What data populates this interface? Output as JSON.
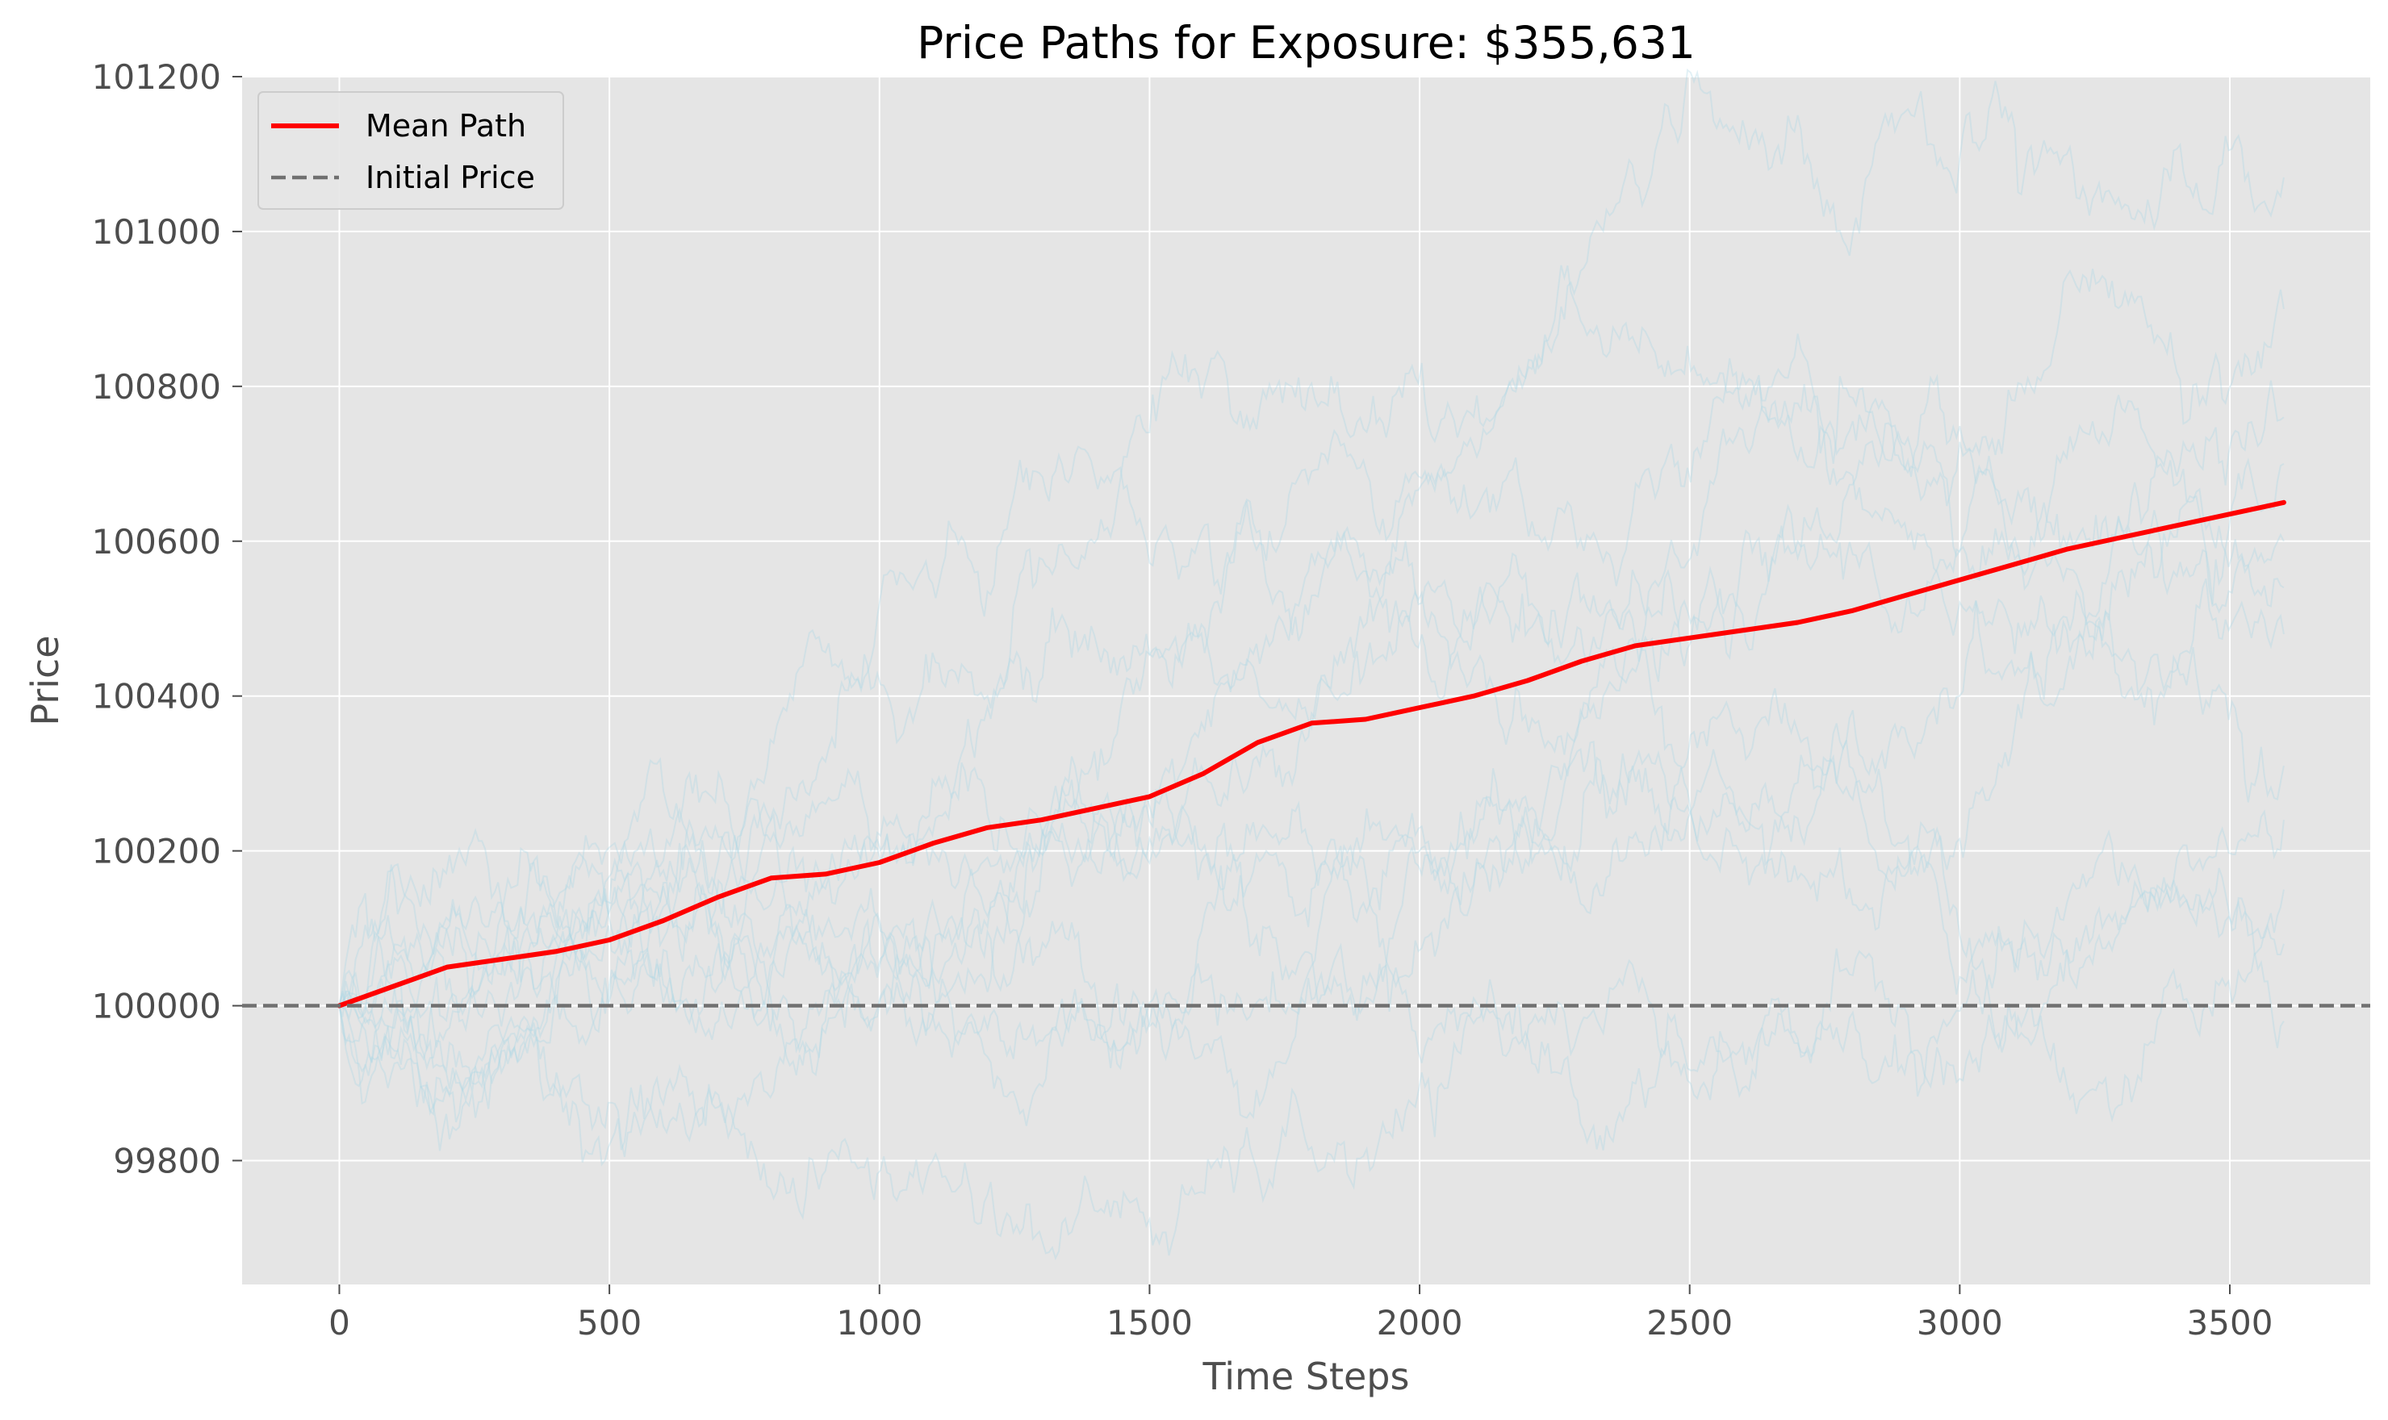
{
  "chart_data": {
    "type": "line",
    "title": "Price Paths for Exposure: $355,631",
    "xlabel": "Time Steps",
    "ylabel": "Price",
    "xlim": [
      -180,
      3760
    ],
    "ylim": [
      99640,
      101200
    ],
    "xticks": [
      0,
      500,
      1000,
      1500,
      2000,
      2500,
      3000,
      3500
    ],
    "xtick_labels": [
      "0",
      "500",
      "1000",
      "1500",
      "2000",
      "2500",
      "3000",
      "3500"
    ],
    "yticks": [
      99800,
      100000,
      100200,
      100400,
      100600,
      100800,
      101000,
      101200
    ],
    "ytick_labels": [
      "99800",
      "100000",
      "100200",
      "100400",
      "100600",
      "100800",
      "101000",
      "101200"
    ],
    "grid": true,
    "legend_position": "upper left",
    "legend": [
      {
        "label": "Mean Path",
        "color": "#ff0000",
        "style": "solid"
      },
      {
        "label": "Initial Price",
        "color": "#707070",
        "style": "dashed"
      }
    ],
    "series": [
      {
        "name": "Mean Path",
        "color": "#ff0000",
        "style": "solid",
        "x": [
          0,
          100,
          200,
          300,
          400,
          500,
          600,
          700,
          800,
          900,
          1000,
          1100,
          1200,
          1300,
          1400,
          1500,
          1600,
          1700,
          1800,
          1900,
          2000,
          2100,
          2200,
          2300,
          2400,
          2500,
          2600,
          2700,
          2800,
          2900,
          3000,
          3100,
          3200,
          3300,
          3400,
          3500,
          3600
        ],
        "values": [
          100000,
          100025,
          100050,
          100060,
          100070,
          100085,
          100110,
          100140,
          100165,
          100170,
          100185,
          100210,
          100230,
          100240,
          100255,
          100270,
          100300,
          100340,
          100365,
          100370,
          100385,
          100400,
          100420,
          100445,
          100465,
          100475,
          100485,
          100495,
          100510,
          100530,
          100550,
          100570,
          100590,
          100605,
          100620,
          100635,
          100650
        ]
      },
      {
        "name": "Initial Price",
        "color": "#707070",
        "style": "dashed",
        "x": [
          -180,
          3760
        ],
        "values": [
          100000,
          100000
        ]
      }
    ],
    "simulated_paths": [
      {
        "end_value": 101070,
        "color": "#add8e6"
      },
      {
        "end_value": 100900,
        "color": "#add8e6"
      },
      {
        "end_value": 100760,
        "color": "#add8e6"
      },
      {
        "end_value": 100700,
        "color": "#add8e6"
      },
      {
        "end_value": 100600,
        "color": "#add8e6"
      },
      {
        "end_value": 100540,
        "color": "#add8e6"
      },
      {
        "end_value": 100480,
        "color": "#add8e6"
      },
      {
        "end_value": 100310,
        "color": "#add8e6"
      },
      {
        "end_value": 100240,
        "color": "#add8e6"
      },
      {
        "end_value": 100150,
        "color": "#add8e6"
      },
      {
        "end_value": 100080,
        "color": "#add8e6"
      },
      {
        "end_value": 99980,
        "color": "#add8e6"
      }
    ],
    "colors": {
      "axes_background": "#e5e5e5",
      "grid": "#ffffff",
      "mean_path": "#ff0000",
      "initial_price": "#707070",
      "simulated_path": "#add8e6"
    }
  }
}
